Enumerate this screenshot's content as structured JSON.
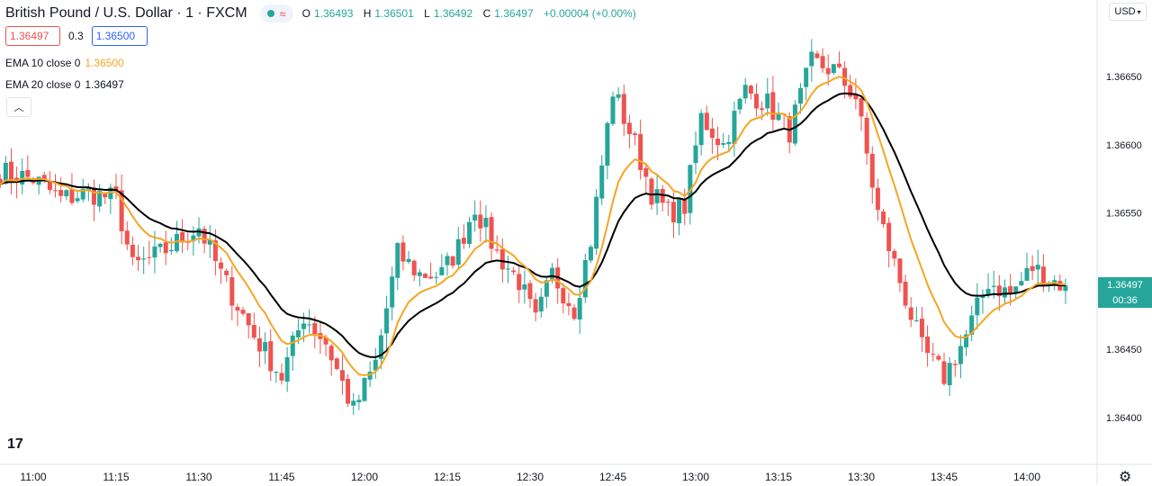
{
  "header": {
    "symbol_title": "British Pound / U.S. Dollar · 1 · FXCM",
    "ohlc": {
      "o_label": "O",
      "o": "1.36493",
      "h_label": "H",
      "h": "1.36501",
      "l_label": "L",
      "l": "1.36492",
      "c_label": "C",
      "c": "1.36497",
      "change": "+0.00004 (+0.00%)"
    },
    "bid": "1.36497",
    "spread": "0.3",
    "ask": "1.36500"
  },
  "indicators": [
    {
      "label": "EMA 10 close 0",
      "value": "1.36500",
      "color": "#f5a623"
    },
    {
      "label": "EMA 20 close 0",
      "value": "1.36497",
      "color": "#000000"
    }
  ],
  "currency": "USD",
  "last_price_tag": {
    "price": "1.36497",
    "countdown": "00:36"
  },
  "icons": {
    "collapse": "chevron-up-icon",
    "logo": "tradingview-logo",
    "settings": "gear-icon"
  },
  "colors": {
    "up": "#26a69a",
    "down": "#ef5350",
    "ema10": "#f5a623",
    "ema20": "#000000"
  },
  "chart_data": {
    "type": "candlestick",
    "yticks": [
      "1.36650",
      "1.36600",
      "1.36550",
      "1.36450",
      "1.36400"
    ],
    "xticks": [
      "11:00",
      "11:15",
      "11:30",
      "11:45",
      "12:00",
      "12:15",
      "12:30",
      "12:45",
      "13:00",
      "13:15",
      "13:30",
      "13:45",
      "14:00"
    ],
    "ylim": [
      1.3638,
      1.3668
    ],
    "close_waypoints": [
      [
        "11:00",
        1.36575
      ],
      [
        "11:05",
        1.3656
      ],
      [
        "11:10",
        1.36565
      ],
      [
        "11:15",
        1.3656
      ],
      [
        "11:18",
        1.3651
      ],
      [
        "11:23",
        1.3652
      ],
      [
        "11:30",
        1.3654
      ],
      [
        "11:34",
        1.36505
      ],
      [
        "11:40",
        1.3646
      ],
      [
        "11:45",
        1.3643
      ],
      [
        "11:49",
        1.36475
      ],
      [
        "11:53",
        1.36455
      ],
      [
        "11:58",
        1.36405
      ],
      [
        "12:02",
        1.3644
      ],
      [
        "12:06",
        1.3652
      ],
      [
        "12:10",
        1.36505
      ],
      [
        "12:14",
        1.36505
      ],
      [
        "12:17",
        1.36525
      ],
      [
        "12:20",
        1.36555
      ],
      [
        "12:24",
        1.3652
      ],
      [
        "12:28",
        1.365
      ],
      [
        "12:31",
        1.3647
      ],
      [
        "12:34",
        1.36505
      ],
      [
        "12:38",
        1.3648
      ],
      [
        "12:41",
        1.3653
      ],
      [
        "12:45",
        1.3664
      ],
      [
        "12:49",
        1.366
      ],
      [
        "12:52",
        1.36565
      ],
      [
        "12:55",
        1.3655
      ],
      [
        "12:58",
        1.36555
      ],
      [
        "13:01",
        1.3662
      ],
      [
        "13:05",
        1.366
      ],
      [
        "13:09",
        1.3664
      ],
      [
        "13:13",
        1.3663
      ],
      [
        "13:17",
        1.3661
      ],
      [
        "13:21",
        1.3666
      ],
      [
        "13:25",
        1.36655
      ],
      [
        "13:29",
        1.36635
      ],
      [
        "13:33",
        1.3655
      ],
      [
        "13:37",
        1.365
      ],
      [
        "13:41",
        1.3645
      ],
      [
        "13:45",
        1.3643
      ],
      [
        "13:49",
        1.3646
      ],
      [
        "13:53",
        1.365
      ],
      [
        "13:57",
        1.3649
      ],
      [
        "14:01",
        1.3651
      ],
      [
        "14:05",
        1.365
      ],
      [
        "14:07",
        1.36497
      ]
    ],
    "ema_periods": [
      10,
      20
    ]
  }
}
